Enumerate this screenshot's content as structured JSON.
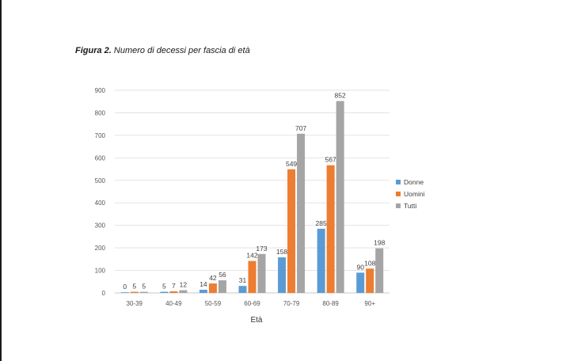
{
  "figure": {
    "label": "Figura 2.",
    "caption": "Numero di decessi per fascia di età"
  },
  "chart_data": {
    "type": "bar",
    "title": "Numero di decessi per fascia di età",
    "xlabel": "Età",
    "ylabel": "",
    "ylim": [
      0,
      900
    ],
    "yticks": [
      0,
      100,
      200,
      300,
      400,
      500,
      600,
      700,
      800,
      900
    ],
    "grid": true,
    "legend_position": "right",
    "categories": [
      "30-39",
      "40-49",
      "50-59",
      "60-69",
      "70-79",
      "80-89",
      "90+"
    ],
    "series": [
      {
        "name": "Donne",
        "color": "#5B9BD5",
        "values": [
          0,
          5,
          14,
          31,
          158,
          285,
          90
        ]
      },
      {
        "name": "Uomini",
        "color": "#ED7D31",
        "values": [
          5,
          7,
          42,
          142,
          549,
          567,
          108
        ]
      },
      {
        "name": "Tutti",
        "color": "#A5A5A5",
        "values": [
          5,
          12,
          56,
          173,
          707,
          852,
          198
        ]
      }
    ]
  }
}
